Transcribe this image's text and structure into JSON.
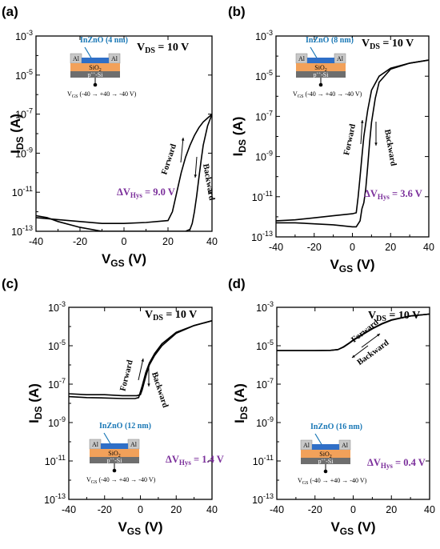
{
  "colors": {
    "curve": "#000000",
    "title_blue": "#1a78b6",
    "hys_purple": "#7b2f9b",
    "oxide_orange": "#f2a15a",
    "channel_blue": "#2f6fc7",
    "electrode_gray": "#c8c8c8",
    "si_gray": "#6e6e6e"
  },
  "chart_data": [
    {
      "panel": "(a)",
      "type": "line",
      "x_axis_label": "V",
      "x_axis_sub": "GS",
      "x_axis_unit": " (V)",
      "y_axis_label": "I",
      "y_axis_sub": "DS",
      "y_axis_unit": " (A)",
      "xlim": [
        -40,
        40
      ],
      "ylim_log10": [
        -13,
        -3
      ],
      "y_scale": "log",
      "x_ticks": [
        "-40",
        "-20",
        "0",
        "20",
        "40"
      ],
      "y_tick_exponents": [
        "-13",
        "-11",
        "-9",
        "-7",
        "-5",
        "-3"
      ],
      "vds_label": "V",
      "vds_sub": "DS",
      "vds_value": " = 10 V",
      "hys_label": "ΔV",
      "hys_sub": "Hys",
      "hys_value": " = 9.0 V",
      "inset_title": "InZnO (4 nm)",
      "inset_left_electrode": "Al",
      "inset_right_electrode": "Al",
      "inset_oxide": "SiO",
      "inset_oxide_sub": "2",
      "inset_substrate": "p",
      "inset_substrate_sup": "++",
      "inset_substrate_rest": "-Si",
      "inset_sweep": "V",
      "inset_sweep_sub": "GS",
      "inset_sweep_rest": " (-40 → +40 → -40 V)",
      "forward_label": "Forward",
      "backward_label": "Backward",
      "series": [
        {
          "name": "Forward",
          "x": [
            -40,
            -30,
            -20,
            -10,
            0,
            10,
            20,
            22,
            24,
            26,
            28,
            30,
            32,
            34,
            36,
            38,
            40
          ],
          "y": [
            -12.3,
            -12.4,
            -12.5,
            -12.6,
            -12.6,
            -12.55,
            -12.45,
            -12.0,
            -11.0,
            -10.0,
            -9.2,
            -8.6,
            -8.1,
            -7.7,
            -7.4,
            -7.2,
            -7.0
          ]
        },
        {
          "name": "Backward",
          "x": [
            40,
            38,
            36,
            35,
            34,
            33,
            32,
            31,
            30,
            28,
            26,
            24,
            22,
            20,
            10,
            0,
            -10,
            -20,
            -30,
            -35,
            -40
          ],
          "y": [
            -7.0,
            -7.6,
            -8.6,
            -9.4,
            -10.3,
            -11.2,
            -12.0,
            -12.6,
            -12.9,
            -13.0,
            -13.0,
            -13.0,
            -13.0,
            -13.0,
            -13.0,
            -13.0,
            -13.0,
            -12.8,
            -12.5,
            -12.3,
            -12.2
          ]
        }
      ]
    },
    {
      "panel": "(b)",
      "type": "line",
      "x_axis_label": "V",
      "x_axis_sub": "GS",
      "x_axis_unit": " (V)",
      "y_axis_label": "I",
      "y_axis_sub": "DS",
      "y_axis_unit": " (A)",
      "xlim": [
        -40,
        40
      ],
      "ylim_log10": [
        -13,
        -3
      ],
      "y_scale": "log",
      "x_ticks": [
        "-40",
        "-20",
        "0",
        "20",
        "40"
      ],
      "y_tick_exponents": [
        "-13",
        "-11",
        "-9",
        "-7",
        "-5",
        "-3"
      ],
      "vds_label": "V",
      "vds_sub": "DS",
      "vds_value": " = 10 V",
      "hys_label": "ΔV",
      "hys_sub": "Hys",
      "hys_value": " = 3.6 V",
      "inset_title": "InZnO (8 nm)",
      "inset_left_electrode": "Al",
      "inset_right_electrode": "Al",
      "inset_oxide": "SiO",
      "inset_oxide_sub": "2",
      "inset_substrate": "p",
      "inset_substrate_sup": "++",
      "inset_substrate_rest": "-Si",
      "inset_sweep": "V",
      "inset_sweep_sub": "GS",
      "inset_sweep_rest": " (-40 → +40 → -40 V)",
      "forward_label": "Forward",
      "backward_label": "Backward",
      "series": [
        {
          "name": "Forward",
          "x": [
            -40,
            -30,
            -20,
            -10,
            0,
            2,
            3,
            4,
            5,
            6,
            8,
            10,
            14,
            20,
            30,
            40
          ],
          "y": [
            -12.2,
            -12.15,
            -12.05,
            -11.95,
            -11.85,
            -11.8,
            -11.0,
            -10.0,
            -9.0,
            -8.0,
            -6.7,
            -5.7,
            -5.0,
            -4.6,
            -4.35,
            -4.2
          ]
        },
        {
          "name": "Backward",
          "x": [
            40,
            30,
            20,
            14,
            12,
            10,
            9,
            8,
            7,
            6,
            5,
            4,
            2,
            0,
            -10,
            -20,
            -30,
            -40
          ],
          "y": [
            -4.2,
            -4.35,
            -4.65,
            -5.3,
            -6.1,
            -7.3,
            -8.3,
            -9.5,
            -10.6,
            -11.3,
            -11.6,
            -12.2,
            -12.5,
            -12.5,
            -12.4,
            -12.35,
            -12.3,
            -12.3
          ]
        }
      ]
    },
    {
      "panel": "(c)",
      "type": "line",
      "x_axis_label": "V",
      "x_axis_sub": "GS",
      "x_axis_unit": " (V)",
      "y_axis_label": "I",
      "y_axis_sub": "DS",
      "y_axis_unit": " (A)",
      "xlim": [
        -40,
        40
      ],
      "ylim_log10": [
        -13,
        -3
      ],
      "y_scale": "log",
      "x_ticks": [
        "-40",
        "-20",
        "0",
        "20",
        "40"
      ],
      "y_tick_exponents": [
        "-13",
        "-11",
        "-9",
        "-7",
        "-5",
        "-3"
      ],
      "vds_label": "V",
      "vds_sub": "DS",
      "vds_value": " = 10 V",
      "hys_label": "ΔV",
      "hys_sub": "Hys",
      "hys_value": " = 1.4 V",
      "inset_title": "InZnO (12 nm)",
      "inset_left_electrode": "Al",
      "inset_right_electrode": "Al",
      "inset_oxide": "SiO",
      "inset_oxide_sub": "2",
      "inset_substrate": "p",
      "inset_substrate_sup": "++",
      "inset_substrate_rest": "-Si",
      "inset_sweep": "V",
      "inset_sweep_sub": "GS",
      "inset_sweep_rest": " (-40 → +40 → -40 V)",
      "forward_label": "Forward",
      "backward_label": "Backward",
      "series": [
        {
          "name": "Forward",
          "x": [
            -40,
            -30,
            -20,
            -10,
            -3,
            -1,
            1,
            3,
            5,
            8,
            12,
            20,
            30,
            40
          ],
          "y": [
            -7.65,
            -7.7,
            -7.72,
            -7.75,
            -7.75,
            -7.7,
            -7.1,
            -6.4,
            -5.9,
            -5.4,
            -4.9,
            -4.3,
            -3.95,
            -3.7
          ]
        },
        {
          "name": "Backward",
          "x": [
            40,
            30,
            20,
            12,
            8,
            5,
            3,
            1,
            0,
            -2,
            -10,
            -20,
            -30,
            -40
          ],
          "y": [
            -3.7,
            -3.95,
            -4.35,
            -5.0,
            -5.5,
            -6.0,
            -6.6,
            -7.3,
            -7.55,
            -7.6,
            -7.6,
            -7.55,
            -7.55,
            -7.5
          ]
        }
      ]
    },
    {
      "panel": "(d)",
      "type": "line",
      "x_axis_label": "V",
      "x_axis_sub": "GS",
      "x_axis_unit": " (V)",
      "y_axis_label": "I",
      "y_axis_sub": "DS",
      "y_axis_unit": " (A)",
      "xlim": [
        -40,
        40
      ],
      "ylim_log10": [
        -13,
        -3
      ],
      "y_scale": "log",
      "x_ticks": [
        "-40",
        "-20",
        "0",
        "20",
        "40"
      ],
      "y_tick_exponents": [
        "-13",
        "-11",
        "-9",
        "-7",
        "-5",
        "-3"
      ],
      "vds_label": "V",
      "vds_sub": "DS",
      "vds_value": " = 10 V",
      "hys_label": "ΔV",
      "hys_sub": "Hys",
      "hys_value": " = 0.4 V",
      "inset_title": "InZnO (16 nm)",
      "inset_left_electrode": "Al",
      "inset_right_electrode": "Al",
      "inset_oxide": "SiO",
      "inset_oxide_sub": "2",
      "inset_substrate": "p",
      "inset_substrate_sup": "++",
      "inset_substrate_rest": "-Si",
      "inset_sweep": "V",
      "inset_sweep_sub": "GS",
      "inset_sweep_rest": " (-40 → +40 → -40 V)",
      "forward_label": "Forward",
      "backward_label": "Backward",
      "series": [
        {
          "name": "Forward",
          "x": [
            -40,
            -30,
            -20,
            -12,
            -8,
            -5,
            -2,
            0,
            5,
            10,
            15,
            20,
            30,
            40
          ],
          "y": [
            -5.25,
            -5.25,
            -5.25,
            -5.24,
            -5.2,
            -5.05,
            -4.85,
            -4.7,
            -4.4,
            -4.1,
            -3.85,
            -3.65,
            -3.45,
            -3.35
          ]
        },
        {
          "name": "Backward",
          "x": [
            40,
            30,
            20,
            15,
            10,
            5,
            0,
            -2,
            -5,
            -8,
            -12,
            -20,
            -30,
            -40
          ],
          "y": [
            -3.35,
            -3.45,
            -3.67,
            -3.87,
            -4.12,
            -4.42,
            -4.72,
            -4.87,
            -5.07,
            -5.2,
            -5.24,
            -5.25,
            -5.25,
            -5.25
          ]
        }
      ]
    }
  ]
}
